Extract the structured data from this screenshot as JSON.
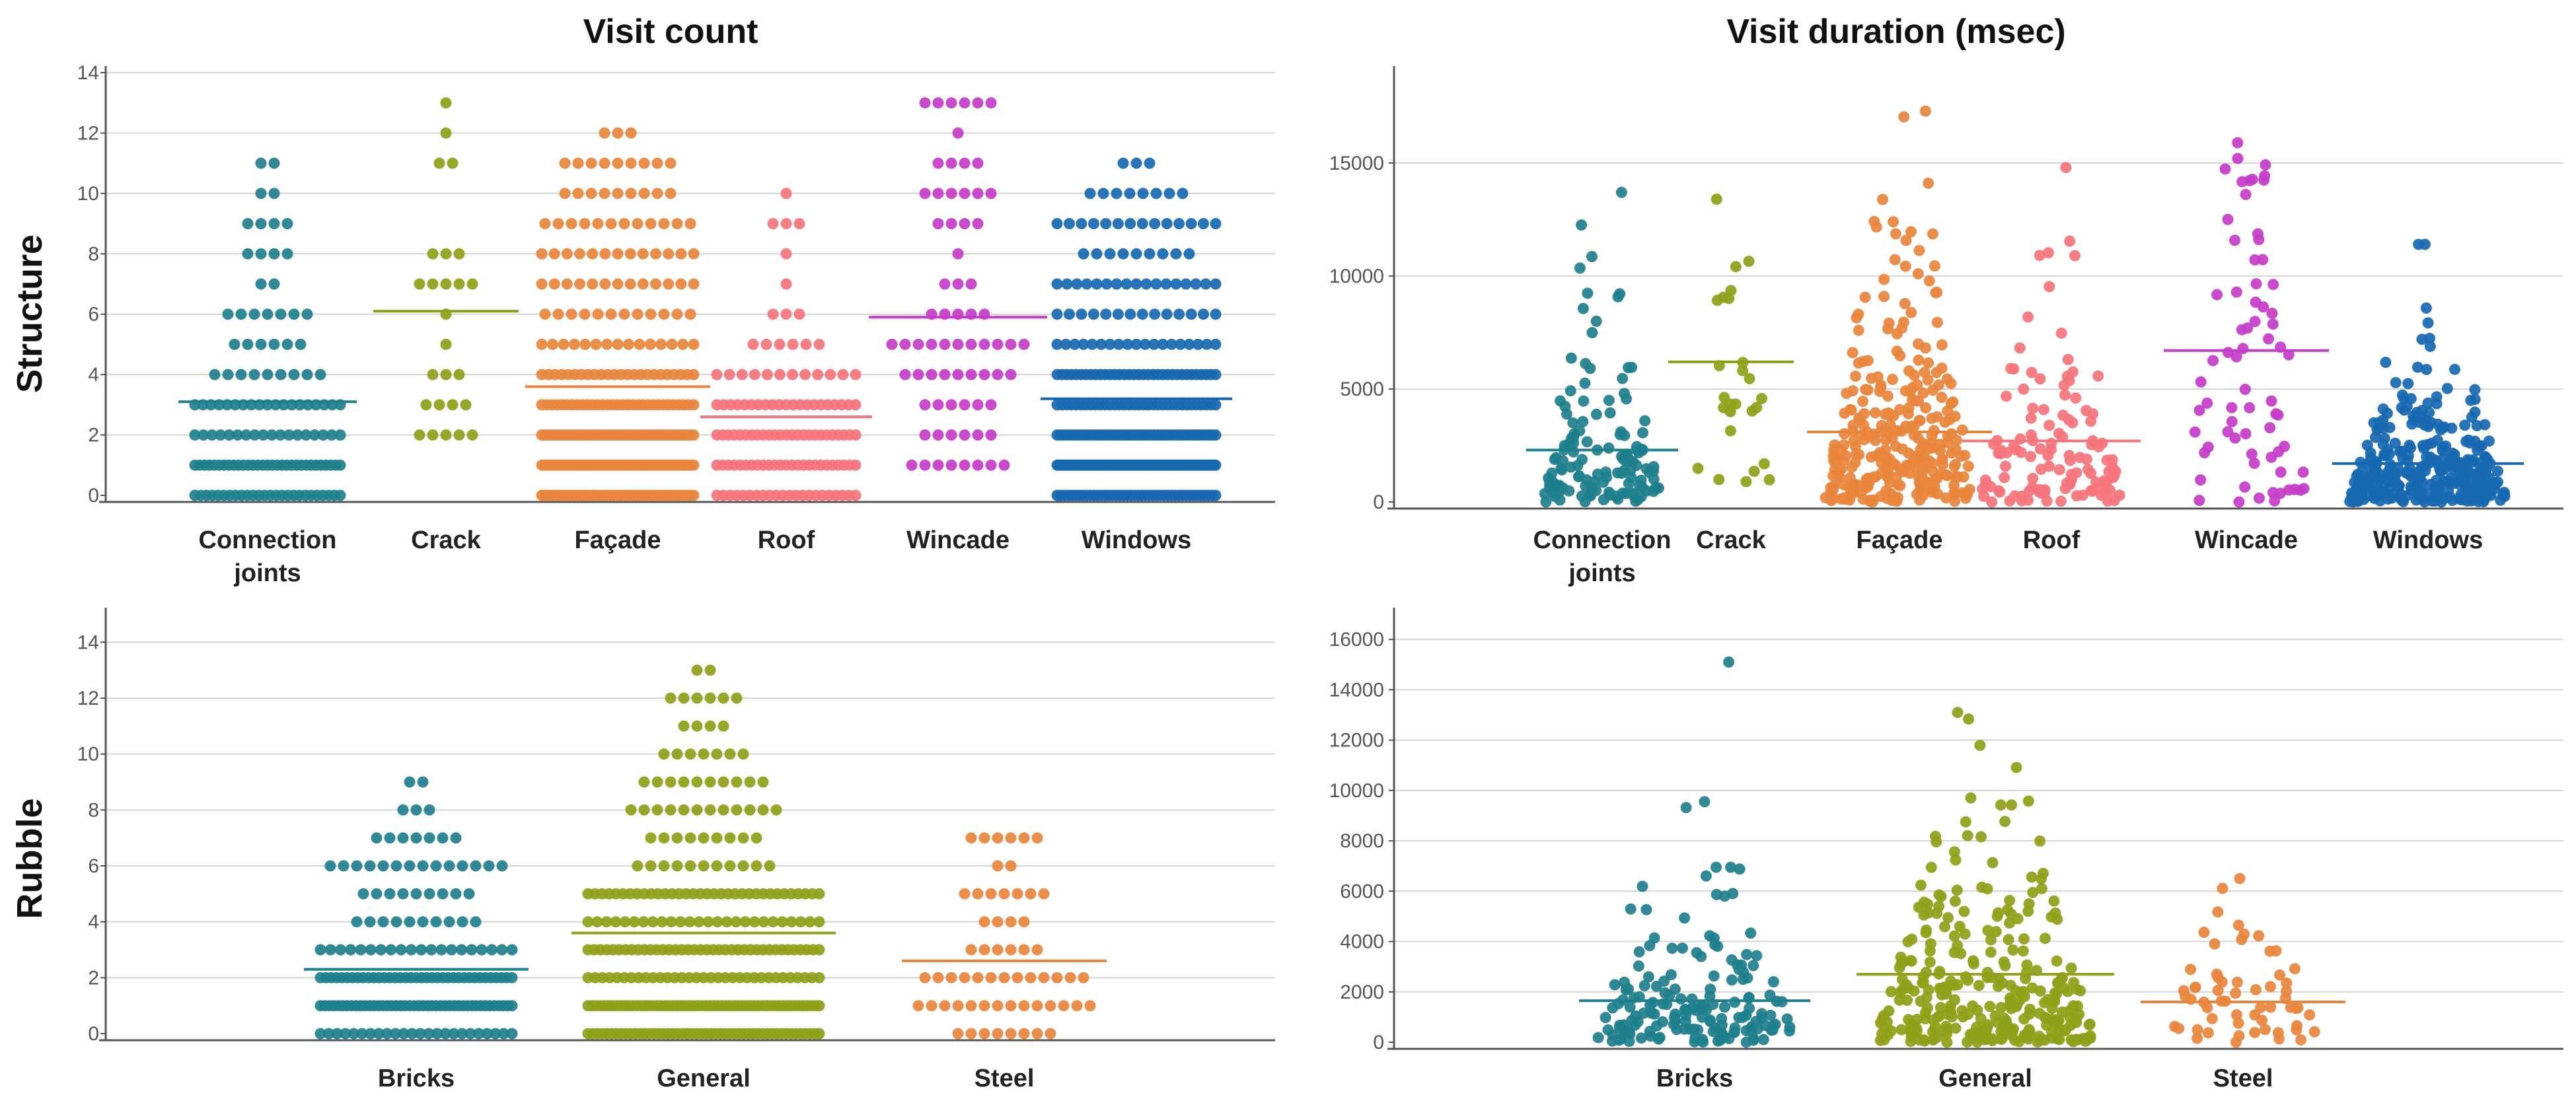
{
  "column_titles": [
    "Visit count",
    "Visit duration (msec)"
  ],
  "row_titles": [
    "Structure",
    "Rubble"
  ],
  "colors": {
    "teal": "#1e7f8c",
    "olive": "#8fa018",
    "orange": "#e8853c",
    "salmon": "#f5747c",
    "magenta": "#c43cc8",
    "blue": "#1768b0"
  },
  "chart_data": [
    {
      "id": "structure-count",
      "type": "scatter",
      "title": "Visit count",
      "row": "Structure",
      "ylim": [
        0,
        14
      ],
      "yticks": [
        "0",
        "2",
        "4",
        "6",
        "8",
        "10",
        "12",
        "14"
      ],
      "categories": [
        {
          "name": "Connection joints",
          "label_lines": [
            "Connection",
            "joints"
          ],
          "color": "#1e7f8c",
          "n": 130,
          "mean": 3.1,
          "min": 0,
          "max": 11,
          "integer": true
        },
        {
          "name": "Crack",
          "label_lines": [
            "Crack"
          ],
          "color": "#8fa018",
          "n": 26,
          "mean": 6.1,
          "min": 2,
          "max": 13,
          "integer": true
        },
        {
          "name": "Façade",
          "label_lines": [
            "Façade"
          ],
          "color": "#e8853c",
          "n": 290,
          "mean": 3.6,
          "min": 0,
          "max": 12,
          "integer": true
        },
        {
          "name": "Roof",
          "label_lines": [
            "Roof"
          ],
          "color": "#f5747c",
          "n": 120,
          "mean": 2.6,
          "min": 0,
          "max": 10,
          "integer": true
        },
        {
          "name": "Wincade",
          "label_lines": [
            "Wincade"
          ],
          "color": "#c43cc8",
          "n": 70,
          "mean": 5.9,
          "min": 1,
          "max": 13,
          "integer": true
        },
        {
          "name": "Windows",
          "label_lines": [
            "Windows"
          ],
          "color": "#1768b0",
          "n": 330,
          "mean": 3.2,
          "min": 0,
          "max": 11,
          "integer": true
        }
      ]
    },
    {
      "id": "structure-duration",
      "type": "scatter",
      "title": "Visit duration (msec)",
      "row": "Structure",
      "ylim": [
        0,
        19000
      ],
      "yticks": [
        "0",
        "5000",
        "10000",
        "15000"
      ],
      "categories": [
        {
          "name": "Connection joints",
          "label_lines": [
            "Connection",
            "joints"
          ],
          "color": "#1e7f8c",
          "n": 130,
          "mean": 2300,
          "min": 0,
          "max": 13700,
          "integer": false
        },
        {
          "name": "Crack",
          "label_lines": [
            "Crack"
          ],
          "color": "#8fa018",
          "n": 26,
          "mean": 6200,
          "min": 900,
          "max": 13400,
          "integer": false
        },
        {
          "name": "Façade",
          "label_lines": [
            "Façade"
          ],
          "color": "#e8853c",
          "n": 290,
          "mean": 3100,
          "min": 0,
          "max": 17300,
          "integer": false
        },
        {
          "name": "Roof",
          "label_lines": [
            "Roof"
          ],
          "color": "#f5747c",
          "n": 120,
          "mean": 2700,
          "min": 0,
          "max": 14800,
          "integer": false
        },
        {
          "name": "Wincade",
          "label_lines": [
            "Wincade"
          ],
          "color": "#c43cc8",
          "n": 70,
          "mean": 6700,
          "min": 0,
          "max": 15900,
          "integer": false
        },
        {
          "name": "Windows",
          "label_lines": [
            "Windows"
          ],
          "color": "#1768b0",
          "n": 330,
          "mean": 1700,
          "min": 0,
          "max": 11400,
          "integer": false
        }
      ]
    },
    {
      "id": "rubble-count",
      "type": "scatter",
      "title": "Visit count",
      "row": "Rubble",
      "ylim": [
        0,
        15
      ],
      "yticks": [
        "0",
        "2",
        "4",
        "6",
        "8",
        "10",
        "12",
        "14"
      ],
      "categories": [
        {
          "name": "Bricks",
          "label_lines": [
            "Bricks"
          ],
          "color": "#1e7f8c",
          "n": 170,
          "mean": 2.3,
          "min": 0,
          "max": 9,
          "integer": true
        },
        {
          "name": "General",
          "label_lines": [
            "General"
          ],
          "color": "#8fa018",
          "n": 300,
          "mean": 3.6,
          "min": 0,
          "max": 13,
          "integer": true
        },
        {
          "name": "Steel",
          "label_lines": [
            "Steel"
          ],
          "color": "#e8853c",
          "n": 60,
          "mean": 2.6,
          "min": 0,
          "max": 7,
          "integer": true
        }
      ]
    },
    {
      "id": "rubble-duration",
      "type": "scatter",
      "title": "Visit duration (msec)",
      "row": "Rubble",
      "ylim": [
        0,
        17000
      ],
      "yticks": [
        "0",
        "2000",
        "4000",
        "6000",
        "8000",
        "10000",
        "12000",
        "14000",
        "16000"
      ],
      "categories": [
        {
          "name": "Bricks",
          "label_lines": [
            "Bricks"
          ],
          "color": "#1e7f8c",
          "n": 170,
          "mean": 1650,
          "min": 0,
          "max": 15100,
          "integer": false
        },
        {
          "name": "General",
          "label_lines": [
            "General"
          ],
          "color": "#8fa018",
          "n": 300,
          "mean": 2700,
          "min": 0,
          "max": 13100,
          "integer": false
        },
        {
          "name": "Steel",
          "label_lines": [
            "Steel"
          ],
          "color": "#e8853c",
          "n": 60,
          "mean": 1600,
          "min": 0,
          "max": 6500,
          "integer": false
        }
      ]
    }
  ]
}
